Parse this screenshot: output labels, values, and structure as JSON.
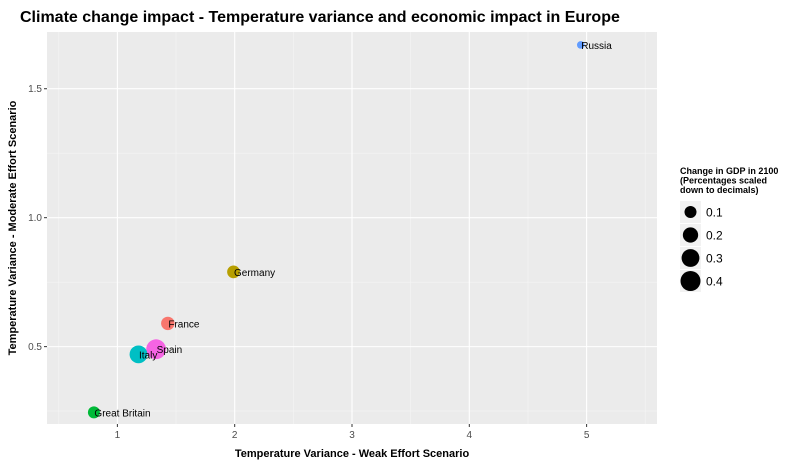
{
  "chart_data": {
    "type": "scatter",
    "title": "Climate change impact - Temperature variance and economic impact in Europe",
    "xlabel": "Temperature Variance - Weak Effort Scenario",
    "ylabel": "Temperature Variance - Moderate Effort Scenario",
    "xlim": [
      0.4,
      5.6
    ],
    "ylim": [
      0.2,
      1.72
    ],
    "x_ticks": [
      1,
      2,
      3,
      4,
      5
    ],
    "x_tick_labels": [
      "1",
      "2",
      "3",
      "4",
      "5"
    ],
    "y_ticks": [
      0.5,
      1.0,
      1.5
    ],
    "y_tick_labels": [
      "0.5",
      "1.0",
      "1.5"
    ],
    "grid": true,
    "points": [
      {
        "label": "Russia",
        "x": 4.95,
        "y": 1.67,
        "size": 0.02,
        "color": "#619CFF"
      },
      {
        "label": "Germany",
        "x": 1.99,
        "y": 0.79,
        "size": 0.12,
        "color": "#B79F00"
      },
      {
        "label": "France",
        "x": 1.43,
        "y": 0.59,
        "size": 0.14,
        "color": "#F8766D"
      },
      {
        "label": "Spain",
        "x": 1.33,
        "y": 0.49,
        "size": 0.39,
        "color": "#F564E3"
      },
      {
        "label": "Italy",
        "x": 1.18,
        "y": 0.47,
        "size": 0.3,
        "color": "#00BFC4"
      },
      {
        "label": "Great Britain",
        "x": 0.8,
        "y": 0.245,
        "size": 0.1,
        "color": "#00BA38"
      }
    ],
    "legend": {
      "title_lines": [
        "Change in GDP in 2100",
        "(Percentages scaled",
        " down to decimals)"
      ],
      "placement": "right",
      "entries": [
        {
          "label": "0.1",
          "size": 0.1
        },
        {
          "label": "0.2",
          "size": 0.2
        },
        {
          "label": "0.3",
          "size": 0.3
        },
        {
          "label": "0.4",
          "size": 0.4
        }
      ]
    }
  }
}
